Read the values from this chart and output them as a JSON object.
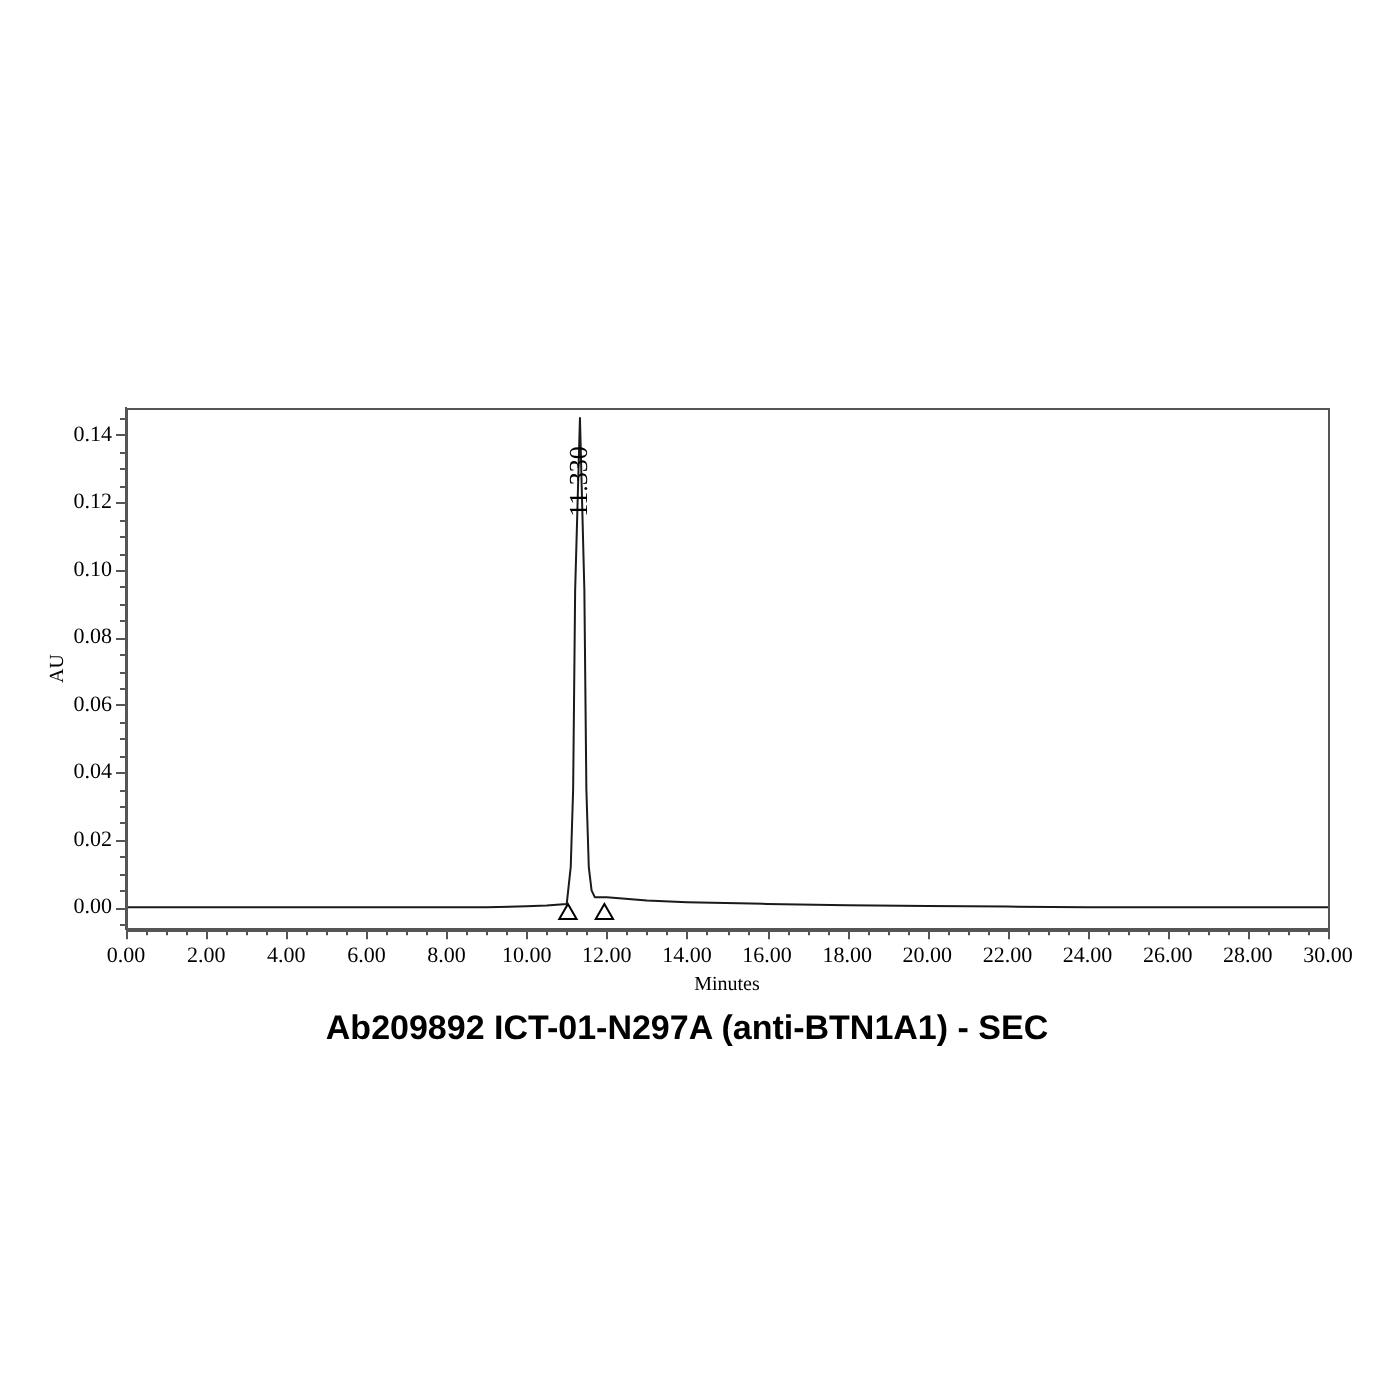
{
  "chart_data": {
    "type": "line",
    "title": "Ab209892 ICT-01-N297A (anti-BTN1A1) - SEC",
    "xlabel": "Minutes",
    "ylabel": "AU",
    "xlim": [
      0,
      30
    ],
    "ylim": [
      -0.0065,
      0.148
    ],
    "xticks": [
      {
        "value": 0,
        "label": "0.00"
      },
      {
        "value": 0.5,
        "label": null
      },
      {
        "value": 1,
        "label": null
      },
      {
        "value": 1.5,
        "label": null
      },
      {
        "value": 2,
        "label": "2.00"
      },
      {
        "value": 2.5,
        "label": null
      },
      {
        "value": 3,
        "label": null
      },
      {
        "value": 3.5,
        "label": null
      },
      {
        "value": 4,
        "label": "4.00"
      },
      {
        "value": 4.5,
        "label": null
      },
      {
        "value": 5,
        "label": null
      },
      {
        "value": 5.5,
        "label": null
      },
      {
        "value": 6,
        "label": "6.00"
      },
      {
        "value": 6.5,
        "label": null
      },
      {
        "value": 7,
        "label": null
      },
      {
        "value": 7.5,
        "label": null
      },
      {
        "value": 8,
        "label": "8.00"
      },
      {
        "value": 8.5,
        "label": null
      },
      {
        "value": 9,
        "label": null
      },
      {
        "value": 9.5,
        "label": null
      },
      {
        "value": 10,
        "label": "10.00"
      },
      {
        "value": 10.5,
        "label": null
      },
      {
        "value": 11,
        "label": null
      },
      {
        "value": 11.5,
        "label": null
      },
      {
        "value": 12,
        "label": "12.00"
      },
      {
        "value": 12.5,
        "label": null
      },
      {
        "value": 13,
        "label": null
      },
      {
        "value": 13.5,
        "label": null
      },
      {
        "value": 14,
        "label": "14.00"
      },
      {
        "value": 14.5,
        "label": null
      },
      {
        "value": 15,
        "label": null
      },
      {
        "value": 15.5,
        "label": null
      },
      {
        "value": 16,
        "label": "16.00"
      },
      {
        "value": 16.5,
        "label": null
      },
      {
        "value": 17,
        "label": null
      },
      {
        "value": 17.5,
        "label": null
      },
      {
        "value": 18,
        "label": "18.00"
      },
      {
        "value": 18.5,
        "label": null
      },
      {
        "value": 19,
        "label": null
      },
      {
        "value": 19.5,
        "label": null
      },
      {
        "value": 20,
        "label": "20.00"
      },
      {
        "value": 20.5,
        "label": null
      },
      {
        "value": 21,
        "label": null
      },
      {
        "value": 21.5,
        "label": null
      },
      {
        "value": 22,
        "label": "22.00"
      },
      {
        "value": 22.5,
        "label": null
      },
      {
        "value": 23,
        "label": null
      },
      {
        "value": 23.5,
        "label": null
      },
      {
        "value": 24,
        "label": "24.00"
      },
      {
        "value": 24.5,
        "label": null
      },
      {
        "value": 25,
        "label": null
      },
      {
        "value": 25.5,
        "label": null
      },
      {
        "value": 26,
        "label": "26.00"
      },
      {
        "value": 26.5,
        "label": null
      },
      {
        "value": 27,
        "label": null
      },
      {
        "value": 27.5,
        "label": null
      },
      {
        "value": 28,
        "label": "28.00"
      },
      {
        "value": 28.5,
        "label": null
      },
      {
        "value": 29,
        "label": null
      },
      {
        "value": 29.5,
        "label": null
      },
      {
        "value": 30,
        "label": "30.00"
      }
    ],
    "yticks": [
      {
        "value": -0.005,
        "label": null
      },
      {
        "value": 0,
        "label": "0.00"
      },
      {
        "value": 0.005,
        "label": null
      },
      {
        "value": 0.01,
        "label": null
      },
      {
        "value": 0.015,
        "label": null
      },
      {
        "value": 0.02,
        "label": "0.02"
      },
      {
        "value": 0.025,
        "label": null
      },
      {
        "value": 0.03,
        "label": null
      },
      {
        "value": 0.035,
        "label": null
      },
      {
        "value": 0.04,
        "label": "0.04"
      },
      {
        "value": 0.045,
        "label": null
      },
      {
        "value": 0.05,
        "label": null
      },
      {
        "value": 0.055,
        "label": null
      },
      {
        "value": 0.06,
        "label": "0.06"
      },
      {
        "value": 0.065,
        "label": null
      },
      {
        "value": 0.07,
        "label": null
      },
      {
        "value": 0.075,
        "label": null
      },
      {
        "value": 0.08,
        "label": "0.08"
      },
      {
        "value": 0.085,
        "label": null
      },
      {
        "value": 0.09,
        "label": null
      },
      {
        "value": 0.095,
        "label": null
      },
      {
        "value": 0.1,
        "label": "0.10"
      },
      {
        "value": 0.105,
        "label": null
      },
      {
        "value": 0.11,
        "label": null
      },
      {
        "value": 0.115,
        "label": null
      },
      {
        "value": 0.12,
        "label": "0.12"
      },
      {
        "value": 0.125,
        "label": null
      },
      {
        "value": 0.13,
        "label": null
      },
      {
        "value": 0.135,
        "label": null
      },
      {
        "value": 0.14,
        "label": "0.14"
      },
      {
        "value": 0.145,
        "label": null
      }
    ],
    "series": [
      {
        "color": "#1a1a1a",
        "marker": "none",
        "x": [
          0,
          2,
          4,
          6,
          8,
          9,
          10,
          10.5,
          11,
          11.1,
          11.16,
          11.21,
          11.33,
          11.44,
          11.49,
          11.55,
          11.62,
          11.7,
          12,
          13,
          14,
          16,
          18,
          20,
          22,
          24,
          30
        ],
        "values": [
          0,
          0,
          0,
          0,
          0,
          0,
          0.0003,
          0.0005,
          0.001,
          0.012,
          0.035,
          0.094,
          0.145,
          0.094,
          0.035,
          0.012,
          0.005,
          0.003,
          0.003,
          0.002,
          0.0015,
          0.001,
          0.0006,
          0.0004,
          0.0002,
          0,
          0
        ]
      },
      {
        "type": "scatter",
        "color": "#000000",
        "marker": "triangle",
        "x": [
          11.03,
          11.94
        ],
        "values": [
          -0.002,
          -0.002
        ]
      }
    ],
    "annotations": [
      {
        "text": "11.330",
        "x": 11.33,
        "y": 0.145
      }
    ],
    "grid": false,
    "legend": false
  }
}
